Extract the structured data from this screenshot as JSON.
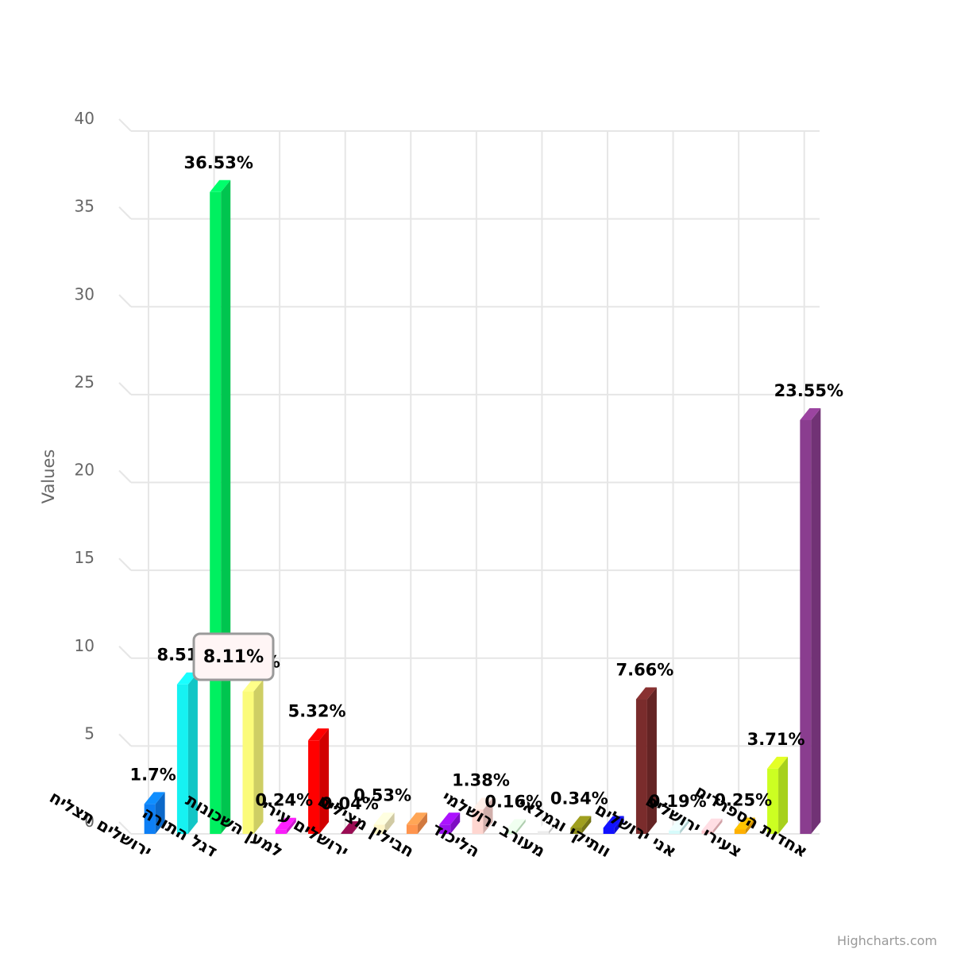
{
  "chart_data": {
    "type": "bar",
    "ylabel": "Values",
    "ylim": [
      0,
      40
    ],
    "yticks": [
      0,
      5,
      10,
      15,
      20,
      25,
      30,
      35,
      40
    ],
    "grid": true,
    "legend": "none",
    "categories": [
      "ירושלים תצליח",
      "",
      "דגל התורה",
      "",
      "למען השכונות",
      "",
      "ירושלים עירי",
      "",
      "חבילין מצילים",
      "",
      "הליכוד",
      "",
      "מעורב ירושלמי",
      "",
      "וותיקי וגמלאי",
      "",
      "אני ירושלים",
      "",
      "צעירי ירושלים",
      "",
      "אחדות הספרדים"
    ],
    "series": [
      {
        "values": [
          1.7,
          8.51,
          36.53,
          8.11,
          0.24,
          5.32,
          0.04,
          0.53,
          0.53,
          0.53,
          1.38,
          0.16,
          0.16,
          0.34,
          0.34,
          7.66,
          0.19,
          0.19,
          0.25,
          3.71,
          23.55
        ],
        "data_labels": [
          "1.7%",
          "8.51%",
          "36.53%",
          "8.11%",
          "0.24%",
          "5.32%",
          "0.04%",
          "0.53%",
          "",
          "",
          "1.38%",
          "0.16%",
          "",
          "0.34%",
          "",
          "7.66%",
          "0.19%",
          "",
          "0.25%",
          "3.71%",
          "23.55%"
        ],
        "colors": [
          "#0d7ff5",
          "#16f2f2",
          "#00f060",
          "#fbfb7a",
          "#fa1dfa",
          "#ff0000",
          "#8a0a4a",
          "#fff6c8",
          "#ff944d",
          "#9a10ee",
          "#ffd6d0",
          "#d6fbd6",
          "#ececec",
          "#8e8e1c",
          "#1010ff",
          "#7a2c2c",
          "#d6fbfb",
          "#ffc6cc",
          "#ffb000",
          "#ccff22",
          "#8a3d8f"
        ]
      }
    ],
    "tooltip": {
      "text": "8.11%"
    }
  },
  "credits": "Highcharts.com"
}
